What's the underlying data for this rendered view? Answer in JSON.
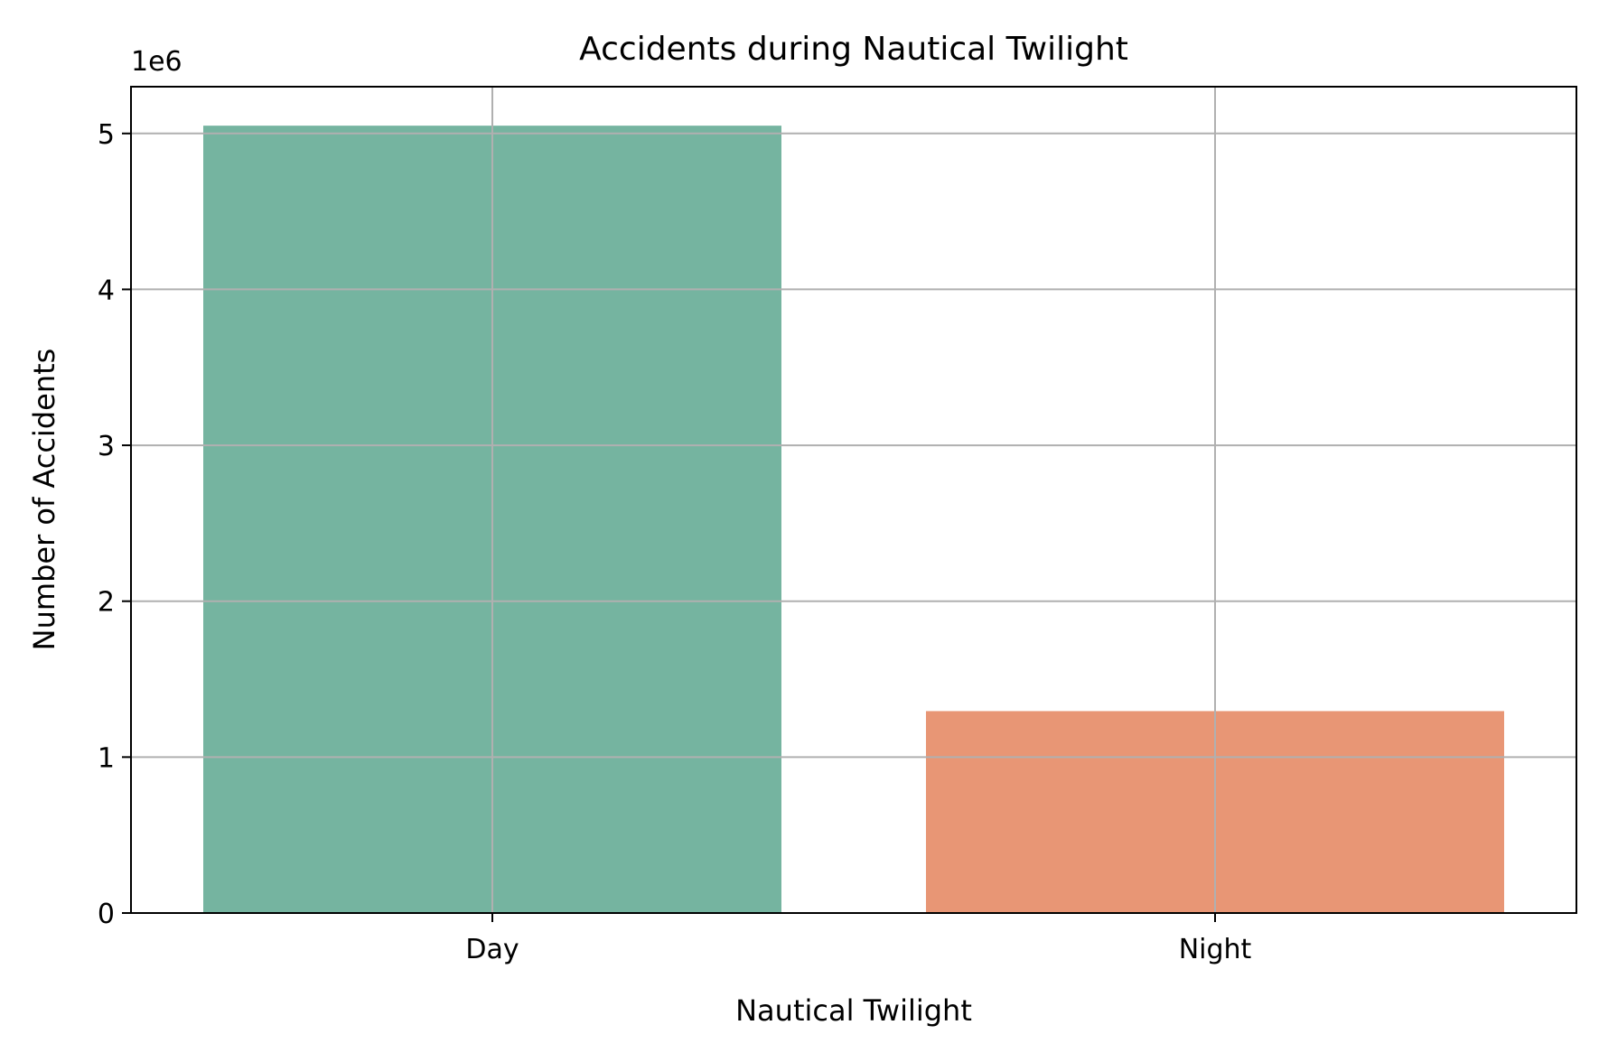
{
  "chart_data": {
    "type": "bar",
    "title": "Accidents during Nautical Twilight",
    "xlabel": "Nautical Twilight",
    "ylabel": "Number of Accidents",
    "y_offset_label": "1e6",
    "categories": [
      "Day",
      "Night"
    ],
    "values": [
      5050000,
      1295000
    ],
    "colors": [
      "#75b4a0",
      "#e89675"
    ],
    "ylim": [
      0,
      5300000
    ],
    "yticks": [
      0,
      1000000,
      2000000,
      3000000,
      4000000,
      5000000
    ],
    "ytick_labels": [
      "0",
      "1",
      "2",
      "3",
      "4",
      "5"
    ],
    "grid": true,
    "legend": "none"
  }
}
